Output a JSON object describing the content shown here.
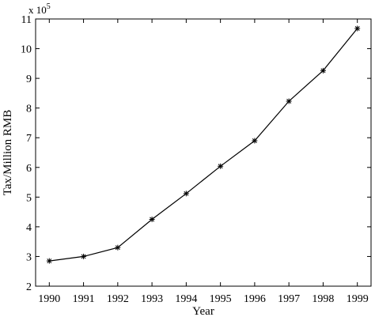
{
  "chart_data": {
    "type": "line",
    "title": "",
    "xlabel": "Year",
    "ylabel": "Tax/Million RMB",
    "y_multiplier_label": {
      "base": "x 10",
      "exponent": "5"
    },
    "x": [
      1990,
      1991,
      1992,
      1993,
      1994,
      1995,
      1996,
      1997,
      1998,
      1999
    ],
    "xticks": [
      "1990",
      "1991",
      "1992",
      "1993",
      "1994",
      "1995",
      "1996",
      "1997",
      "1998",
      "1999"
    ],
    "yticks": [
      "2",
      "3",
      "4",
      "5",
      "6",
      "7",
      "8",
      "9",
      "10",
      "11"
    ],
    "xlim": [
      1989.6,
      1999.4
    ],
    "ylim": [
      2,
      11
    ],
    "grid": false,
    "marker": "asterisk",
    "series": [
      {
        "values": [
          2.85,
          3.0,
          3.3,
          4.25,
          5.12,
          6.04,
          6.9,
          8.23,
          9.26,
          10.68
        ]
      }
    ]
  }
}
